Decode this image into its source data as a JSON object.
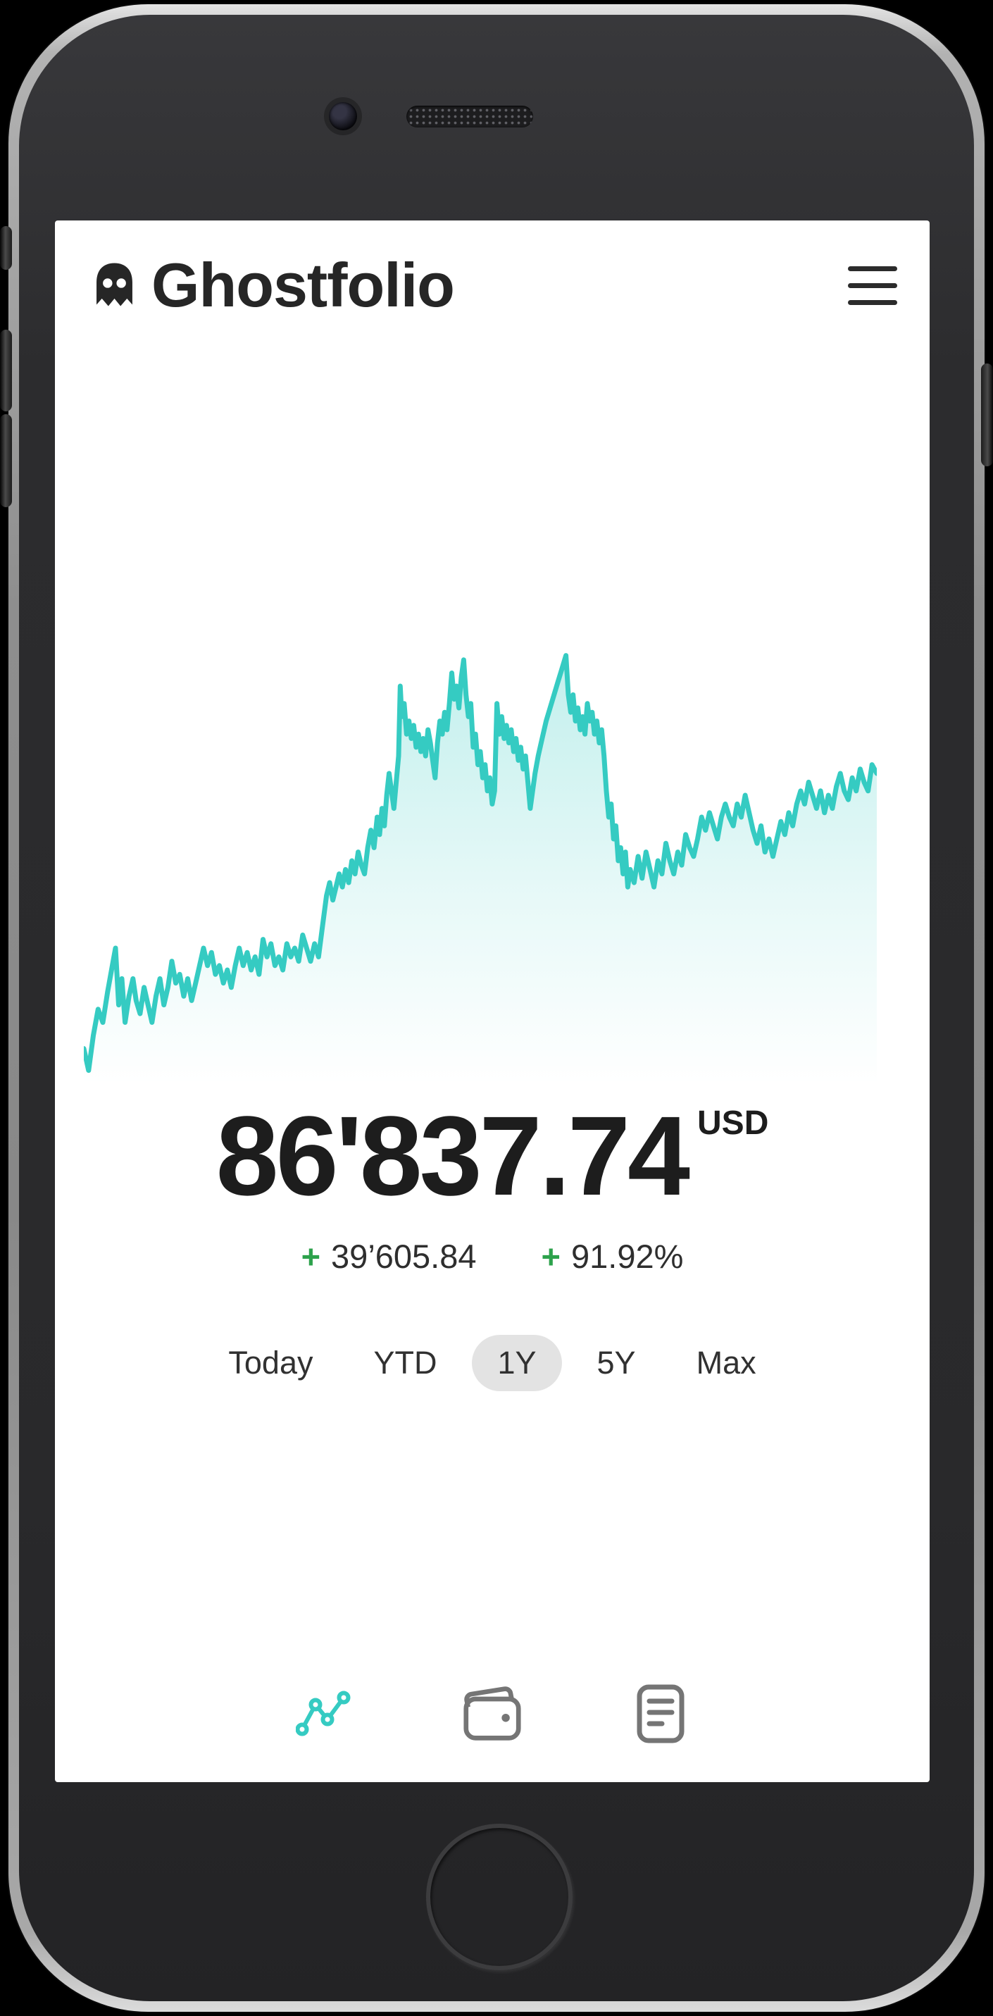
{
  "app": {
    "title": "Ghostfolio",
    "logo_icon": "ghost-icon",
    "menu_icon": "hamburger-icon"
  },
  "portfolio": {
    "value": "86'837.74",
    "currency": "USD",
    "change_absolute_sign": "+",
    "change_absolute": "39’605.84",
    "change_percent_sign": "+",
    "change_percent": "91.92%"
  },
  "ranges": {
    "active_label": "1Y",
    "options": [
      {
        "label": "Today",
        "active": false
      },
      {
        "label": "YTD",
        "active": false
      },
      {
        "label": "1Y",
        "active": true
      },
      {
        "label": "5Y",
        "active": false
      },
      {
        "label": "Max",
        "active": false
      }
    ]
  },
  "nav": {
    "items": [
      {
        "icon": "performance-chart-icon",
        "active": true
      },
      {
        "icon": "wallet-icon",
        "active": false
      },
      {
        "icon": "report-list-icon",
        "active": false
      }
    ]
  },
  "colors": {
    "accent": "#35cbc2",
    "accent_fill_top": "rgba(53,203,194,0.30)",
    "accent_fill_mid": "rgba(53,203,194,0.12)",
    "accent_fill_bottom": "rgba(53,203,194,0)",
    "green": "#2da24c",
    "pill": "#e3e3e3",
    "nav_gray": "#757575",
    "text": "#262626"
  },
  "chart_data": {
    "type": "area",
    "title": "Portfolio value over selected range (1Y)",
    "xlabel": "",
    "ylabel": "",
    "x_range": [
      "1 year ago",
      "today"
    ],
    "grid": false,
    "legend": false,
    "axes_visible": false,
    "y_unit": "USD (estimated, axes not shown in UI)",
    "y_value_at_end": 86837.74,
    "y_value_at_start_estimate": 47232,
    "y_min_estimate": 44000,
    "y_max_estimate": 90000,
    "line_color": "#35cbc2",
    "points_format": "[x 0-1000 across range, y 0-1 fraction of chart height]",
    "points": [
      [
        0,
        0.07
      ],
      [
        6,
        0.02
      ],
      [
        12,
        0.1
      ],
      [
        18,
        0.16
      ],
      [
        24,
        0.13
      ],
      [
        30,
        0.2
      ],
      [
        36,
        0.26
      ],
      [
        40,
        0.3
      ],
      [
        44,
        0.17
      ],
      [
        48,
        0.23
      ],
      [
        52,
        0.13
      ],
      [
        57,
        0.19
      ],
      [
        62,
        0.23
      ],
      [
        66,
        0.18
      ],
      [
        71,
        0.15
      ],
      [
        76,
        0.21
      ],
      [
        81,
        0.17
      ],
      [
        86,
        0.13
      ],
      [
        91,
        0.19
      ],
      [
        96,
        0.23
      ],
      [
        101,
        0.17
      ],
      [
        106,
        0.21
      ],
      [
        111,
        0.27
      ],
      [
        116,
        0.22
      ],
      [
        121,
        0.24
      ],
      [
        126,
        0.19
      ],
      [
        131,
        0.23
      ],
      [
        136,
        0.18
      ],
      [
        141,
        0.22
      ],
      [
        146,
        0.26
      ],
      [
        151,
        0.3
      ],
      [
        156,
        0.26
      ],
      [
        161,
        0.29
      ],
      [
        166,
        0.24
      ],
      [
        171,
        0.26
      ],
      [
        176,
        0.22
      ],
      [
        181,
        0.25
      ],
      [
        186,
        0.21
      ],
      [
        191,
        0.26
      ],
      [
        196,
        0.3
      ],
      [
        201,
        0.26
      ],
      [
        206,
        0.29
      ],
      [
        211,
        0.25
      ],
      [
        216,
        0.28
      ],
      [
        221,
        0.24
      ],
      [
        226,
        0.32
      ],
      [
        231,
        0.28
      ],
      [
        236,
        0.31
      ],
      [
        241,
        0.26
      ],
      [
        246,
        0.28
      ],
      [
        251,
        0.25
      ],
      [
        256,
        0.31
      ],
      [
        261,
        0.28
      ],
      [
        266,
        0.3
      ],
      [
        271,
        0.27
      ],
      [
        276,
        0.33
      ],
      [
        281,
        0.3
      ],
      [
        286,
        0.27
      ],
      [
        291,
        0.31
      ],
      [
        296,
        0.28
      ],
      [
        301,
        0.35
      ],
      [
        306,
        0.42
      ],
      [
        310,
        0.45
      ],
      [
        314,
        0.41
      ],
      [
        318,
        0.44
      ],
      [
        322,
        0.47
      ],
      [
        326,
        0.44
      ],
      [
        330,
        0.48
      ],
      [
        334,
        0.45
      ],
      [
        338,
        0.5
      ],
      [
        342,
        0.47
      ],
      [
        346,
        0.52
      ],
      [
        350,
        0.49
      ],
      [
        354,
        0.47
      ],
      [
        358,
        0.53
      ],
      [
        362,
        0.57
      ],
      [
        366,
        0.53
      ],
      [
        370,
        0.6
      ],
      [
        373,
        0.56
      ],
      [
        376,
        0.62
      ],
      [
        379,
        0.58
      ],
      [
        382,
        0.65
      ],
      [
        385,
        0.7
      ],
      [
        388,
        0.66
      ],
      [
        391,
        0.62
      ],
      [
        394,
        0.68
      ],
      [
        397,
        0.74
      ],
      [
        399,
        0.9
      ],
      [
        401,
        0.83
      ],
      [
        404,
        0.86
      ],
      [
        407,
        0.79
      ],
      [
        410,
        0.82
      ],
      [
        413,
        0.78
      ],
      [
        416,
        0.81
      ],
      [
        419,
        0.76
      ],
      [
        422,
        0.79
      ],
      [
        425,
        0.75
      ],
      [
        428,
        0.78
      ],
      [
        431,
        0.74
      ],
      [
        434,
        0.8
      ],
      [
        437,
        0.77
      ],
      [
        440,
        0.73
      ],
      [
        443,
        0.69
      ],
      [
        446,
        0.77
      ],
      [
        449,
        0.82
      ],
      [
        452,
        0.79
      ],
      [
        455,
        0.84
      ],
      [
        458,
        0.8
      ],
      [
        461,
        0.86
      ],
      [
        464,
        0.93
      ],
      [
        467,
        0.87
      ],
      [
        470,
        0.9
      ],
      [
        473,
        0.85
      ],
      [
        476,
        0.92
      ],
      [
        479,
        0.96
      ],
      [
        482,
        0.88
      ],
      [
        485,
        0.83
      ],
      [
        488,
        0.86
      ],
      [
        491,
        0.76
      ],
      [
        494,
        0.79
      ],
      [
        497,
        0.72
      ],
      [
        500,
        0.75
      ],
      [
        503,
        0.69
      ],
      [
        506,
        0.72
      ],
      [
        509,
        0.66
      ],
      [
        512,
        0.69
      ],
      [
        515,
        0.63
      ],
      [
        518,
        0.66
      ],
      [
        521,
        0.86
      ],
      [
        524,
        0.79
      ],
      [
        527,
        0.83
      ],
      [
        530,
        0.78
      ],
      [
        533,
        0.81
      ],
      [
        536,
        0.77
      ],
      [
        539,
        0.8
      ],
      [
        542,
        0.75
      ],
      [
        545,
        0.78
      ],
      [
        548,
        0.73
      ],
      [
        551,
        0.76
      ],
      [
        554,
        0.71
      ],
      [
        557,
        0.74
      ],
      [
        560,
        0.68
      ],
      [
        563,
        0.62
      ],
      [
        566,
        0.66
      ],
      [
        569,
        0.7
      ],
      [
        573,
        0.74
      ],
      [
        578,
        0.78
      ],
      [
        583,
        0.82
      ],
      [
        588,
        0.85
      ],
      [
        593,
        0.88
      ],
      [
        598,
        0.91
      ],
      [
        603,
        0.94
      ],
      [
        608,
        0.97
      ],
      [
        611,
        0.88
      ],
      [
        614,
        0.84
      ],
      [
        617,
        0.88
      ],
      [
        620,
        0.82
      ],
      [
        623,
        0.85
      ],
      [
        626,
        0.8
      ],
      [
        629,
        0.83
      ],
      [
        632,
        0.79
      ],
      [
        635,
        0.86
      ],
      [
        638,
        0.82
      ],
      [
        641,
        0.84
      ],
      [
        644,
        0.79
      ],
      [
        647,
        0.82
      ],
      [
        650,
        0.77
      ],
      [
        653,
        0.8
      ],
      [
        656,
        0.74
      ],
      [
        659,
        0.66
      ],
      [
        662,
        0.6
      ],
      [
        665,
        0.63
      ],
      [
        668,
        0.55
      ],
      [
        671,
        0.58
      ],
      [
        674,
        0.5
      ],
      [
        677,
        0.53
      ],
      [
        680,
        0.47
      ],
      [
        683,
        0.52
      ],
      [
        686,
        0.44
      ],
      [
        689,
        0.48
      ],
      [
        694,
        0.45
      ],
      [
        699,
        0.51
      ],
      [
        704,
        0.46
      ],
      [
        709,
        0.52
      ],
      [
        714,
        0.48
      ],
      [
        719,
        0.44
      ],
      [
        724,
        0.5
      ],
      [
        729,
        0.47
      ],
      [
        734,
        0.54
      ],
      [
        739,
        0.5
      ],
      [
        744,
        0.47
      ],
      [
        749,
        0.52
      ],
      [
        754,
        0.49
      ],
      [
        759,
        0.56
      ],
      [
        764,
        0.53
      ],
      [
        769,
        0.51
      ],
      [
        774,
        0.55
      ],
      [
        779,
        0.6
      ],
      [
        784,
        0.57
      ],
      [
        789,
        0.61
      ],
      [
        794,
        0.58
      ],
      [
        799,
        0.55
      ],
      [
        804,
        0.6
      ],
      [
        809,
        0.63
      ],
      [
        814,
        0.6
      ],
      [
        819,
        0.58
      ],
      [
        824,
        0.63
      ],
      [
        829,
        0.6
      ],
      [
        834,
        0.65
      ],
      [
        839,
        0.61
      ],
      [
        844,
        0.57
      ],
      [
        849,
        0.54
      ],
      [
        854,
        0.58
      ],
      [
        859,
        0.52
      ],
      [
        864,
        0.55
      ],
      [
        869,
        0.51
      ],
      [
        874,
        0.55
      ],
      [
        879,
        0.59
      ],
      [
        884,
        0.56
      ],
      [
        889,
        0.61
      ],
      [
        894,
        0.58
      ],
      [
        899,
        0.63
      ],
      [
        904,
        0.66
      ],
      [
        909,
        0.63
      ],
      [
        914,
        0.68
      ],
      [
        919,
        0.65
      ],
      [
        924,
        0.62
      ],
      [
        929,
        0.66
      ],
      [
        934,
        0.61
      ],
      [
        939,
        0.65
      ],
      [
        944,
        0.62
      ],
      [
        949,
        0.67
      ],
      [
        954,
        0.7
      ],
      [
        959,
        0.66
      ],
      [
        964,
        0.64
      ],
      [
        969,
        0.69
      ],
      [
        974,
        0.66
      ],
      [
        979,
        0.71
      ],
      [
        984,
        0.68
      ],
      [
        989,
        0.66
      ],
      [
        994,
        0.72
      ],
      [
        1000,
        0.7
      ]
    ]
  }
}
